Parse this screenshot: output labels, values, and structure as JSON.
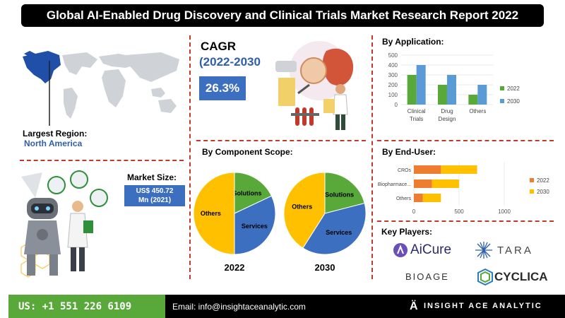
{
  "title": "Global AI-Enabled Drug Discovery and Clinical Trials Market Research Report 2022",
  "region": {
    "label": "Largest Region:",
    "value": "North America"
  },
  "cagr": {
    "title": "CAGR",
    "period": "(2022-2030",
    "value": "26.3%"
  },
  "market_size": {
    "label": "Market Size:",
    "line1": "US$ 450.72",
    "line2": "Mn (2021)"
  },
  "component": {
    "title": "By Component Scope:"
  },
  "application": {
    "title": "By Application:"
  },
  "end_user": {
    "title": "By End-User:"
  },
  "key_players": {
    "title": "Key Players:",
    "names": [
      "AiCure",
      "TARA",
      "BIOAGE",
      "CYCLICA"
    ]
  },
  "footer": {
    "phone": "US: +1 551 226 6109",
    "email": "Email: info@insightaceanalytic.com",
    "brand": "INSIGHT ACE ANALYTIC"
  },
  "colors": {
    "green": "#58a93a",
    "blue": "#3d6fc0",
    "orange": "#ed7d31",
    "yellow": "#ffc000",
    "dark_blue": "#2e5fa8"
  },
  "chart_data": [
    {
      "type": "pie",
      "title": "2022",
      "labels": [
        "Solutions",
        "Services",
        "Others"
      ],
      "values": [
        18,
        32,
        50
      ],
      "colors": [
        "#58a93a",
        "#3d6fc0",
        "#ffc000"
      ]
    },
    {
      "type": "pie",
      "title": "2030",
      "labels": [
        "Solutions",
        "Services",
        "Others"
      ],
      "values": [
        21,
        38,
        41
      ],
      "colors": [
        "#58a93a",
        "#3d6fc0",
        "#ffc000"
      ]
    },
    {
      "type": "bar",
      "categories": [
        "Clinical Trials",
        "Drug Design",
        "Others"
      ],
      "series": [
        {
          "name": "2022",
          "values": [
            300,
            200,
            100
          ],
          "color": "#58a93a"
        },
        {
          "name": "2030",
          "values": [
            400,
            300,
            200
          ],
          "color": "#5b9bd5"
        }
      ],
      "ylim": [
        0,
        500
      ],
      "yticks": [
        0,
        100,
        200,
        300,
        400,
        500
      ],
      "legend": "right"
    },
    {
      "type": "bar",
      "orientation": "horizontal",
      "stacked": true,
      "categories": [
        "CROs",
        "Biopharmace...",
        "Others"
      ],
      "series": [
        {
          "name": "2022",
          "values": [
            300,
            200,
            100
          ],
          "color": "#ed7d31"
        },
        {
          "name": "2030",
          "values": [
            400,
            300,
            200
          ],
          "color": "#ffc000"
        }
      ],
      "xlim": [
        0,
        1000
      ],
      "xticks": [
        0,
        500,
        1000
      ],
      "legend": "right"
    }
  ]
}
